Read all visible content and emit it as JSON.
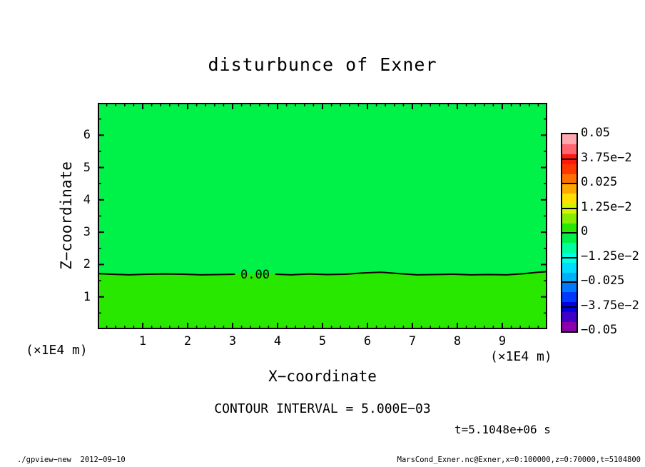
{
  "title": "disturbunce of Exner",
  "annotations": {
    "contour_interval": "CONTOUR INTERVAL = 5.000E−03",
    "time": "t=5.1048e+06 s"
  },
  "footer": {
    "left": "./gpview−new  2012−09−10",
    "right": "MarsCond_Exner.nc@Exner,x=0:100000,z=0:70000,t=5104800"
  },
  "chart_data": {
    "type": "heatmap",
    "subtype": "filled-contour",
    "title": "disturbunce of Exner",
    "xlabel": "X−coordinate",
    "ylabel": "Z−coordinate",
    "x_unit": "(×1E4 m)",
    "z_unit": "(×1E4 m)",
    "xlim": [
      0,
      10
    ],
    "zlim": [
      0,
      7
    ],
    "x_major_ticks": [
      1,
      2,
      3,
      4,
      5,
      6,
      7,
      8,
      9
    ],
    "x_minor_step": 0.2,
    "z_major_ticks": [
      1,
      2,
      3,
      4,
      5,
      6
    ],
    "z_minor_step": 0.5,
    "grid": false,
    "contour_interval_value": 0.005,
    "field_description": "Exner function disturbance, nearly zero everywhere; one 0.00 contour line near z=1.7e4 m separating two adjacent green color bands",
    "zero_contour": {
      "label": "0.00",
      "label_x": 3.5,
      "label_gap_x": [
        3.05,
        3.95
      ],
      "points": [
        [
          0,
          1.72
        ],
        [
          0.3,
          1.7
        ],
        [
          0.7,
          1.68
        ],
        [
          1.1,
          1.7
        ],
        [
          1.5,
          1.71
        ],
        [
          1.9,
          1.7
        ],
        [
          2.3,
          1.68
        ],
        [
          2.7,
          1.69
        ],
        [
          3.05,
          1.7
        ],
        [
          3.95,
          1.7
        ],
        [
          4.3,
          1.68
        ],
        [
          4.7,
          1.71
        ],
        [
          5.1,
          1.69
        ],
        [
          5.5,
          1.7
        ],
        [
          5.9,
          1.74
        ],
        [
          6.3,
          1.76
        ],
        [
          6.7,
          1.72
        ],
        [
          7.1,
          1.68
        ],
        [
          7.5,
          1.69
        ],
        [
          7.9,
          1.7
        ],
        [
          8.3,
          1.68
        ],
        [
          8.7,
          1.69
        ],
        [
          9.1,
          1.68
        ],
        [
          9.5,
          1.72
        ],
        [
          9.8,
          1.76
        ],
        [
          10,
          1.78
        ]
      ]
    },
    "region_colors": {
      "above_line": "#00F148",
      "below_line": "#28E800"
    },
    "colorbar": {
      "position": "right",
      "vmin": -0.05,
      "vmax": 0.05,
      "tick_labels": [
        "0.05",
        "3.75e−2",
        "0.025",
        "1.25e−2",
        "0",
        "−1.25e−2",
        "−0.025",
        "−3.75e−2",
        "−0.05"
      ],
      "n_steps": 20,
      "step_colors_bottom_to_top": [
        "#8A00AA",
        "#4000C8",
        "#0000E0",
        "#0038FF",
        "#0078FF",
        "#00B0FF",
        "#00DCFF",
        "#00FFE6",
        "#00FF9C",
        "#00F048",
        "#28E800",
        "#86EC00",
        "#D2F400",
        "#FFE000",
        "#FFA800",
        "#FF7000",
        "#FF3800",
        "#FF1A10",
        "#FF6670",
        "#FFA8B0"
      ]
    }
  },
  "colors": {
    "frame": "#000000",
    "background": "#FFFFFF",
    "text": "#000000"
  }
}
